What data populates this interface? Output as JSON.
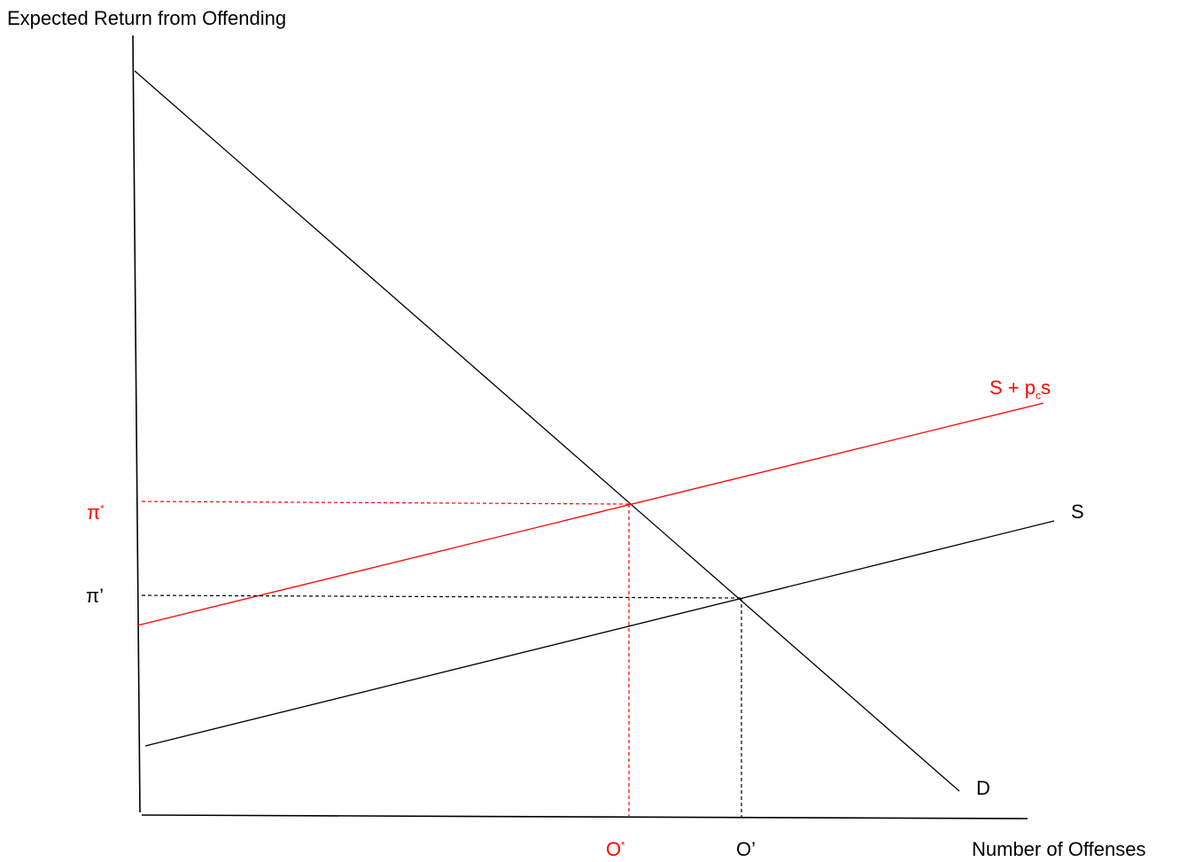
{
  "axes": {
    "y_label": "Expected Return from Offending",
    "x_label": "Number of Offenses"
  },
  "curves": {
    "demand_label": "D",
    "supply_label": "S",
    "supply_shifted_label": {
      "base": "S + p",
      "subscript": "c",
      "tail": "s"
    }
  },
  "markers": {
    "pi_star": {
      "base": "π",
      "sup": "*"
    },
    "pi_prime": "π’",
    "o_star": {
      "base": "O",
      "sup": "*"
    },
    "o_prime": "O’"
  },
  "colors": {
    "black": "#000000",
    "red": "#ff0000"
  }
}
